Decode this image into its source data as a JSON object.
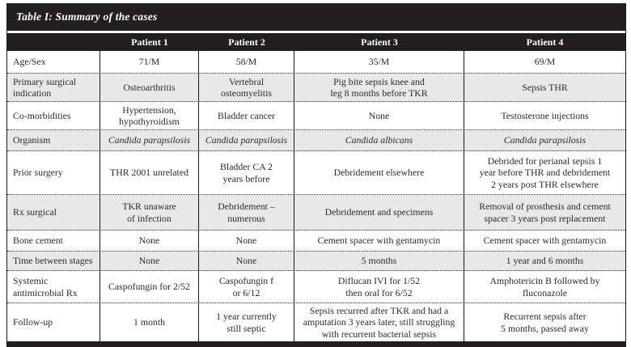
{
  "table": {
    "title": "Table I: Summary of the cases",
    "columns": [
      "",
      "Patient 1",
      "Patient 2",
      "Patient 3",
      "Patient 4"
    ],
    "colors": {
      "band": "#231f20",
      "alt_row": "#e8e8e6",
      "text": "#2b2b2b"
    },
    "rows": [
      {
        "label": "Age/Sex",
        "cells": [
          "71/M",
          "58/M",
          "35/M",
          "69/M"
        ]
      },
      {
        "label": "Primary surgical\nindication",
        "cells": [
          "Osteoarthritis",
          "Vertebral\nosteomyelitis",
          "Pig bite sepsis knee and\nleg 8 months before TKR",
          "Sepsis THR"
        ]
      },
      {
        "label": "Co-morbidities",
        "cells": [
          "Hypertension,\nhypothyroidism",
          "Bladder cancer",
          "None",
          "Testosterone injections"
        ]
      },
      {
        "label": "Organism",
        "cells": [
          "Candida parapsilosis",
          "Candida parapsilosis",
          "Candida albicans",
          "Candida parapsilosis"
        ]
      },
      {
        "label": "Prior surgery",
        "cells": [
          "THR 2001 unrelated",
          "Bladder CA 2\nyears before",
          "Debridement elsewhere",
          "Debrided for perianal sepsis 1\nyear before THR and debridement\n2 years post THR elsewhere"
        ]
      },
      {
        "label": "Rx surgical",
        "cells": [
          "TKR unaware\nof infection",
          "Debridement –\nnumerous",
          "Debridement and specimens",
          "Removal of prosthesis and cement\nspacer 3 years post replacement"
        ]
      },
      {
        "label": "Bone cement",
        "cells": [
          "None",
          "None",
          "Cement spacer with gentamycin",
          "Cement spacer with gentamycin"
        ]
      },
      {
        "label": "Time between stages",
        "cells": [
          "None",
          "None",
          "5 months",
          "1 year and 6 months"
        ]
      },
      {
        "label": "Systemic\nantimicrobial Rx",
        "cells": [
          "Caspofungin for 2/52",
          "Caspofungin f\nor 6/12",
          "Diflucan IVI for 1/52\nthen oral for 6/52",
          "Amphotericin B followed by\nfluconazole"
        ]
      },
      {
        "label": "Follow-up",
        "cells": [
          "1 month",
          "1 year currently\nstill septic",
          "Sepsis recurred after TKR and had a\namputation 3 years later, still struggling\nwith recurrent bacterial sepsis",
          "Recurrent sepsis after\n5 months, passed away"
        ]
      }
    ]
  }
}
